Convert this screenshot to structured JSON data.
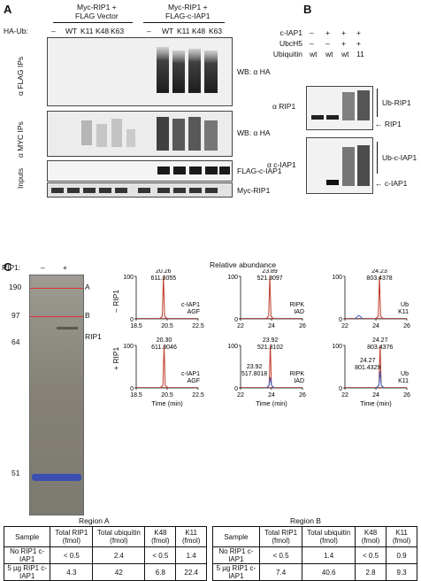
{
  "panel_a": {
    "letter": "A",
    "group1": "Myc-RIP1 +\nFLAG Vector",
    "group2": "Myc-RIP1 +\nFLAG-c-IAP1",
    "ha_ub_label": "HA-Ub:",
    "lanes": [
      "–",
      "WT",
      "K11",
      "K48",
      "K63",
      "–",
      "WT",
      "K11",
      "K48",
      "K63"
    ],
    "row_labels": [
      "α FLAG IPs",
      "α MYC IPs",
      "Inputs"
    ],
    "wb1": "WB: α HA",
    "wb2": "WB: α HA",
    "band1": "FLAG-c-IAP1",
    "band2": "Myc-RIP1"
  },
  "panel_b": {
    "letter": "B",
    "row_names": [
      "c-IAP1",
      "UbcH5",
      "Ubiquitin"
    ],
    "row_marks": [
      [
        "–",
        "+",
        "+",
        "+"
      ],
      [
        "–",
        "–",
        "+",
        "+"
      ],
      [
        "wt",
        "wt",
        "wt",
        "11"
      ]
    ],
    "blot1_label": "α RIP1",
    "blot2_label": "α c-IAP1",
    "ub_rip1": "Ub-RIP1",
    "rip1": "RIP1",
    "ub_ciap1": "Ub-c-IAP1",
    "ciap1": "c-IAP1"
  },
  "panel_c": {
    "letter": "C",
    "rip1_label": "RIP1:",
    "rip1_minus": "–",
    "rip1_plus": "+",
    "markers": [
      "190",
      "97",
      "64",
      "51"
    ],
    "region_a": "A",
    "region_b": "B",
    "gel_rip1": "RIP1",
    "relative_abundance": "Relative abundance",
    "row_minus": "– RIP1",
    "row_plus": "+ RIP1",
    "time_label": "Time (min)"
  },
  "chart_data": [
    {
      "type": "line",
      "title": "",
      "peptide": "c-IAP1 AGF",
      "condition": "– RIP1",
      "xlim": [
        18.5,
        22.5
      ],
      "xticks": [
        "18.5",
        "20.5",
        "22.5"
      ],
      "yticks": [
        "0",
        "100"
      ],
      "peaks": [
        {
          "rt": 20.26,
          "mz": 611.3055,
          "height": 100,
          "color": "#c0392b"
        }
      ]
    },
    {
      "type": "line",
      "title": "",
      "peptide": "RIPK IAD",
      "condition": "– RIP1",
      "xlim": [
        22,
        26
      ],
      "xticks": [
        "22",
        "24",
        "26"
      ],
      "yticks": [
        "0",
        "100"
      ],
      "peaks": [
        {
          "rt": 23.89,
          "mz": 521.3097,
          "height": 100,
          "color": "#c0392b"
        }
      ]
    },
    {
      "type": "line",
      "title": "",
      "peptide": "Ub K11",
      "condition": "– RIP1",
      "xlim": [
        22,
        26
      ],
      "xticks": [
        "22",
        "24",
        "26"
      ],
      "yticks": [
        "0",
        "100"
      ],
      "peaks": [
        {
          "rt": 24.23,
          "mz": 803.4378,
          "height": 100,
          "color": "#c0392b"
        },
        {
          "rt": 22.9,
          "mz": null,
          "height": 8,
          "color": "#3a5fbf"
        }
      ]
    },
    {
      "type": "line",
      "title": "",
      "peptide": "c-IAP1 AGF",
      "condition": "+ RIP1",
      "xlim": [
        18.5,
        22.5
      ],
      "xticks": [
        "18.5",
        "20.5",
        "22.5"
      ],
      "yticks": [
        "0",
        "100"
      ],
      "peaks": [
        {
          "rt": 20.3,
          "mz": 611.3046,
          "height": 100,
          "color": "#c0392b"
        }
      ]
    },
    {
      "type": "line",
      "title": "",
      "peptide": "RIPK IAD",
      "condition": "+ RIP1",
      "xlim": [
        22,
        26
      ],
      "xticks": [
        "22",
        "24",
        "26"
      ],
      "yticks": [
        "0",
        "100"
      ],
      "peaks": [
        {
          "rt": 23.92,
          "mz": 521.3102,
          "height": 100,
          "color": "#c0392b"
        },
        {
          "rt": 23.92,
          "mz": 517.8018,
          "height": 25,
          "color": "#3a5fbf"
        }
      ]
    },
    {
      "type": "line",
      "title": "",
      "peptide": "Ub K11",
      "condition": "+ RIP1",
      "xlim": [
        22,
        26
      ],
      "xticks": [
        "22",
        "24",
        "26"
      ],
      "yticks": [
        "0",
        "100"
      ],
      "peaks": [
        {
          "rt": 24.27,
          "mz": 803.4376,
          "height": 100,
          "color": "#c0392b"
        },
        {
          "rt": 24.27,
          "mz": 801.4329,
          "height": 40,
          "color": "#3a5fbf"
        }
      ]
    }
  ],
  "tables": [
    {
      "region": "Region A",
      "headers": [
        "Sample",
        "Total RIP1 (fmol)",
        "Total ubiquitin (fmol)",
        "K48 (fmol)",
        "K11 (fmol)"
      ],
      "rows": [
        [
          "No RIP1 c-IAP1",
          "< 0.5",
          "2.4",
          "< 0.5",
          "1.4"
        ],
        [
          "5 µg RIP1 c-IAP1",
          "4.3",
          "42",
          "6.8",
          "22.4"
        ]
      ]
    },
    {
      "region": "Region B",
      "headers": [
        "Sample",
        "Total RIP1 (fmol)",
        "Total ubiquitin (fmol)",
        "K48 (fmol)",
        "K11 (fmol)"
      ],
      "rows": [
        [
          "No RIP1 c-IAP1",
          "< 0.5",
          "1.4",
          "< 0.5",
          "0.9"
        ],
        [
          "5 µg RIP1 c-IAP1",
          "7.4",
          "40.6",
          "2.8",
          "9.3"
        ]
      ]
    }
  ]
}
